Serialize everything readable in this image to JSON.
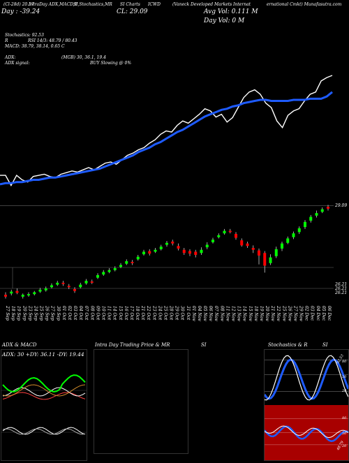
{
  "header": {
    "line1_left": "(Cl-28d) 20.57",
    "line1_a": "IntraDay ADX,MACD,B",
    "line1_b": "SI,Stochastics,MR",
    "line1_c": "SI Charts",
    "line1_d": "ICWD",
    "line1_e": "(Vaneck Developed Markets Internat",
    "line1_f": "ernational Cmkt) Munafasutra.com",
    "line2_a": "Day : -39.24",
    "line2_b": "CL: 29.09",
    "line2_c": "Avg Vol: 0.111 M",
    "line3_c": "Day Vol: 0   M",
    "stoch": "Stochastics: 92.53",
    "rsi": "RSI 14/3: 48.79 / 80.43",
    "rsi_prefix": "R",
    "macd": "MACD: 38.79, 38.14, 0.65 C",
    "adx": "ADX:",
    "adx_mid": "(MGB) 30, 36.1, 19.4",
    "adx_signal": "ADX signal:",
    "adx_buy": "BUY Slowing @ 0%"
  },
  "price_labels": {
    "current": "29.09",
    "low1": "26.21",
    "low2": "26.21",
    "low3": "26.21"
  },
  "x_dates": [
    "27 Sep",
    "18 Sep",
    "19 Sep",
    "20 Sep",
    "23 Sep",
    "24 Sep",
    "25 Sep",
    "26 Sep",
    "27 Sep",
    "30 Sep",
    "01 Oct",
    "02 Oct",
    "03 Oct",
    "04 Oct",
    "07 Oct",
    "08 Oct",
    "09 Oct",
    "10 Oct",
    "11 Oct",
    "14 Oct",
    "15 Oct",
    "16 Oct",
    "17 Oct",
    "18 Oct",
    "21 Oct",
    "22 Oct",
    "23 Oct",
    "24 Oct",
    "25 Oct",
    "28 Oct",
    "29 Oct",
    "30 Oct",
    "31 Oct",
    "01 Nov",
    "04 Nov",
    "05 Nov",
    "06 Nov",
    "07 Nov",
    "08 Nov",
    "11 Nov",
    "12 Nov",
    "13 Nov",
    "14 Nov",
    "15 Nov",
    "18 Nov",
    "19 Nov",
    "20 Nov",
    "21 Nov",
    "22 Nov",
    "25 Nov",
    "26 Nov",
    "27 Nov",
    "29 Nov",
    "02 Dec",
    "03 Dec",
    "04 Dec",
    "05 Dec",
    "06 Dec"
  ],
  "panels": {
    "adx": {
      "title": "ADX  & MACD",
      "readout": "ADX: 30  +DY: 36.11  -DY: 19.44"
    },
    "mrsi": {
      "title": "Intra  Day Trading Price  & MR",
      "title2": "SI"
    },
    "stoch": {
      "title": "Stochastics  & R",
      "title2": "SI",
      "ticks_top": [
        "80",
        "50",
        "20"
      ],
      "ticks_bot": [
        "80",
        "50",
        "20"
      ],
      "tag_top": "92.53",
      "tag_bot": "48.79"
    }
  },
  "colors": {
    "up": "#00ff00",
    "down": "#ff0000",
    "ema": "#1e5bff",
    "line": "#ffffff",
    "stoch_red": "#a80000"
  },
  "chart_data": {
    "type": "candlestick",
    "title": "",
    "ylim": [
      25.9,
      29.5
    ],
    "line_series": {
      "close": [
        27.2,
        27.2,
        27.02,
        27.2,
        27.12,
        27.08,
        27.18,
        27.2,
        27.22,
        27.18,
        27.16,
        27.22,
        27.25,
        27.28,
        27.26,
        27.3,
        27.34,
        27.3,
        27.36,
        27.42,
        27.44,
        27.4,
        27.48,
        27.56,
        27.6,
        27.66,
        27.7,
        27.78,
        27.84,
        27.94,
        28.0,
        27.98,
        28.1,
        28.18,
        28.14,
        28.22,
        28.3,
        28.4,
        28.36,
        28.25,
        28.3,
        28.16,
        28.24,
        28.42,
        28.6,
        28.7,
        28.74,
        28.66,
        28.5,
        28.42,
        28.18,
        28.06,
        28.28,
        28.36,
        28.4,
        28.54,
        28.66,
        28.7,
        28.9,
        28.96,
        29.0
      ],
      "ema": [
        27.04,
        27.06,
        27.06,
        27.08,
        27.08,
        27.1,
        27.12,
        27.12,
        27.14,
        27.16,
        27.16,
        27.18,
        27.2,
        27.22,
        27.24,
        27.26,
        27.28,
        27.3,
        27.32,
        27.36,
        27.4,
        27.44,
        27.48,
        27.52,
        27.56,
        27.62,
        27.66,
        27.7,
        27.76,
        27.8,
        27.86,
        27.92,
        27.98,
        28.02,
        28.08,
        28.14,
        28.2,
        28.26,
        28.3,
        28.34,
        28.38,
        28.4,
        28.44,
        28.46,
        28.5,
        28.52,
        28.54,
        28.56,
        28.56,
        28.54,
        28.54,
        28.54,
        28.54,
        28.56,
        28.56,
        28.56,
        28.58,
        28.58,
        28.58,
        28.62,
        28.7
      ]
    },
    "candles": [
      {
        "o": 26.28,
        "c": 26.22,
        "h": 26.36,
        "l": 26.16
      },
      {
        "o": 26.32,
        "c": 26.38,
        "h": 26.44,
        "l": 26.26
      },
      {
        "o": 26.4,
        "c": 26.34,
        "h": 26.48,
        "l": 26.3
      },
      {
        "o": 26.22,
        "c": 26.28,
        "h": 26.32,
        "l": 26.16
      },
      {
        "o": 26.26,
        "c": 26.3,
        "h": 26.36,
        "l": 26.22
      },
      {
        "o": 26.3,
        "c": 26.36,
        "h": 26.4,
        "l": 26.26
      },
      {
        "o": 26.38,
        "c": 26.44,
        "h": 26.5,
        "l": 26.34
      },
      {
        "o": 26.42,
        "c": 26.48,
        "h": 26.54,
        "l": 26.38
      },
      {
        "o": 26.52,
        "c": 26.58,
        "h": 26.64,
        "l": 26.48
      },
      {
        "o": 26.6,
        "c": 26.66,
        "h": 26.72,
        "l": 26.56
      },
      {
        "o": 26.66,
        "c": 26.62,
        "h": 26.72,
        "l": 26.56
      },
      {
        "o": 26.56,
        "c": 26.52,
        "h": 26.62,
        "l": 26.46
      },
      {
        "o": 26.46,
        "c": 26.4,
        "h": 26.52,
        "l": 26.34
      },
      {
        "o": 26.52,
        "c": 26.6,
        "h": 26.66,
        "l": 26.48
      },
      {
        "o": 26.64,
        "c": 26.72,
        "h": 26.78,
        "l": 26.6
      },
      {
        "o": 26.7,
        "c": 26.66,
        "h": 26.76,
        "l": 26.62
      },
      {
        "o": 26.82,
        "c": 26.9,
        "h": 26.96,
        "l": 26.78
      },
      {
        "o": 26.92,
        "c": 27.0,
        "h": 27.06,
        "l": 26.88
      },
      {
        "o": 27.0,
        "c": 27.06,
        "h": 27.12,
        "l": 26.96
      },
      {
        "o": 27.06,
        "c": 27.12,
        "h": 27.18,
        "l": 27.02
      },
      {
        "o": 27.16,
        "c": 27.22,
        "h": 27.28,
        "l": 27.12
      },
      {
        "o": 27.26,
        "c": 27.34,
        "h": 27.4,
        "l": 27.22
      },
      {
        "o": 27.32,
        "c": 27.28,
        "h": 27.38,
        "l": 27.22
      },
      {
        "o": 27.4,
        "c": 27.48,
        "h": 27.54,
        "l": 27.36
      },
      {
        "o": 27.56,
        "c": 27.64,
        "h": 27.7,
        "l": 27.52
      },
      {
        "o": 27.66,
        "c": 27.58,
        "h": 27.72,
        "l": 27.52
      },
      {
        "o": 27.64,
        "c": 27.7,
        "h": 27.76,
        "l": 27.6
      },
      {
        "o": 27.72,
        "c": 27.8,
        "h": 27.86,
        "l": 27.68
      },
      {
        "o": 27.86,
        "c": 27.92,
        "h": 27.98,
        "l": 27.8
      },
      {
        "o": 27.96,
        "c": 27.9,
        "h": 28.02,
        "l": 27.84
      },
      {
        "o": 27.82,
        "c": 27.74,
        "h": 27.9,
        "l": 27.68
      },
      {
        "o": 27.7,
        "c": 27.6,
        "h": 27.76,
        "l": 27.54
      },
      {
        "o": 27.66,
        "c": 27.58,
        "h": 27.72,
        "l": 27.5
      },
      {
        "o": 27.64,
        "c": 27.54,
        "h": 27.7,
        "l": 27.46
      },
      {
        "o": 27.6,
        "c": 27.7,
        "h": 27.78,
        "l": 27.54
      },
      {
        "o": 27.78,
        "c": 27.86,
        "h": 27.94,
        "l": 27.72
      },
      {
        "o": 27.94,
        "c": 28.02,
        "h": 28.08,
        "l": 27.9
      },
      {
        "o": 28.1,
        "c": 28.16,
        "h": 28.22,
        "l": 28.06
      },
      {
        "o": 28.22,
        "c": 28.3,
        "h": 28.36,
        "l": 28.18
      },
      {
        "o": 28.3,
        "c": 28.26,
        "h": 28.36,
        "l": 28.22
      },
      {
        "o": 28.2,
        "c": 28.08,
        "h": 28.26,
        "l": 28.02
      },
      {
        "o": 28.0,
        "c": 27.84,
        "h": 28.06,
        "l": 27.8
      },
      {
        "o": 27.9,
        "c": 27.82,
        "h": 27.96,
        "l": 27.76
      },
      {
        "o": 27.76,
        "c": 27.7,
        "h": 27.84,
        "l": 27.6
      },
      {
        "o": 27.68,
        "c": 27.52,
        "h": 27.74,
        "l": 27.24
      },
      {
        "o": 27.6,
        "c": 27.2,
        "h": 27.66,
        "l": 26.98
      },
      {
        "o": 27.28,
        "c": 27.46,
        "h": 27.56,
        "l": 27.22
      },
      {
        "o": 27.5,
        "c": 27.72,
        "h": 27.8,
        "l": 27.44
      },
      {
        "o": 27.74,
        "c": 27.9,
        "h": 27.96,
        "l": 27.66
      },
      {
        "o": 27.92,
        "c": 28.06,
        "h": 28.12,
        "l": 27.88
      },
      {
        "o": 28.1,
        "c": 28.22,
        "h": 28.28,
        "l": 28.04
      },
      {
        "o": 28.26,
        "c": 28.38,
        "h": 28.44,
        "l": 28.2
      },
      {
        "o": 28.42,
        "c": 28.58,
        "h": 28.64,
        "l": 28.36
      },
      {
        "o": 28.62,
        "c": 28.74,
        "h": 28.8,
        "l": 28.56
      },
      {
        "o": 28.78,
        "c": 28.86,
        "h": 28.94,
        "l": 28.72
      },
      {
        "o": 28.9,
        "c": 28.98,
        "h": 29.04,
        "l": 28.86
      },
      {
        "o": 29.06,
        "c": 29.0,
        "h": 29.12,
        "l": 28.94
      }
    ]
  }
}
